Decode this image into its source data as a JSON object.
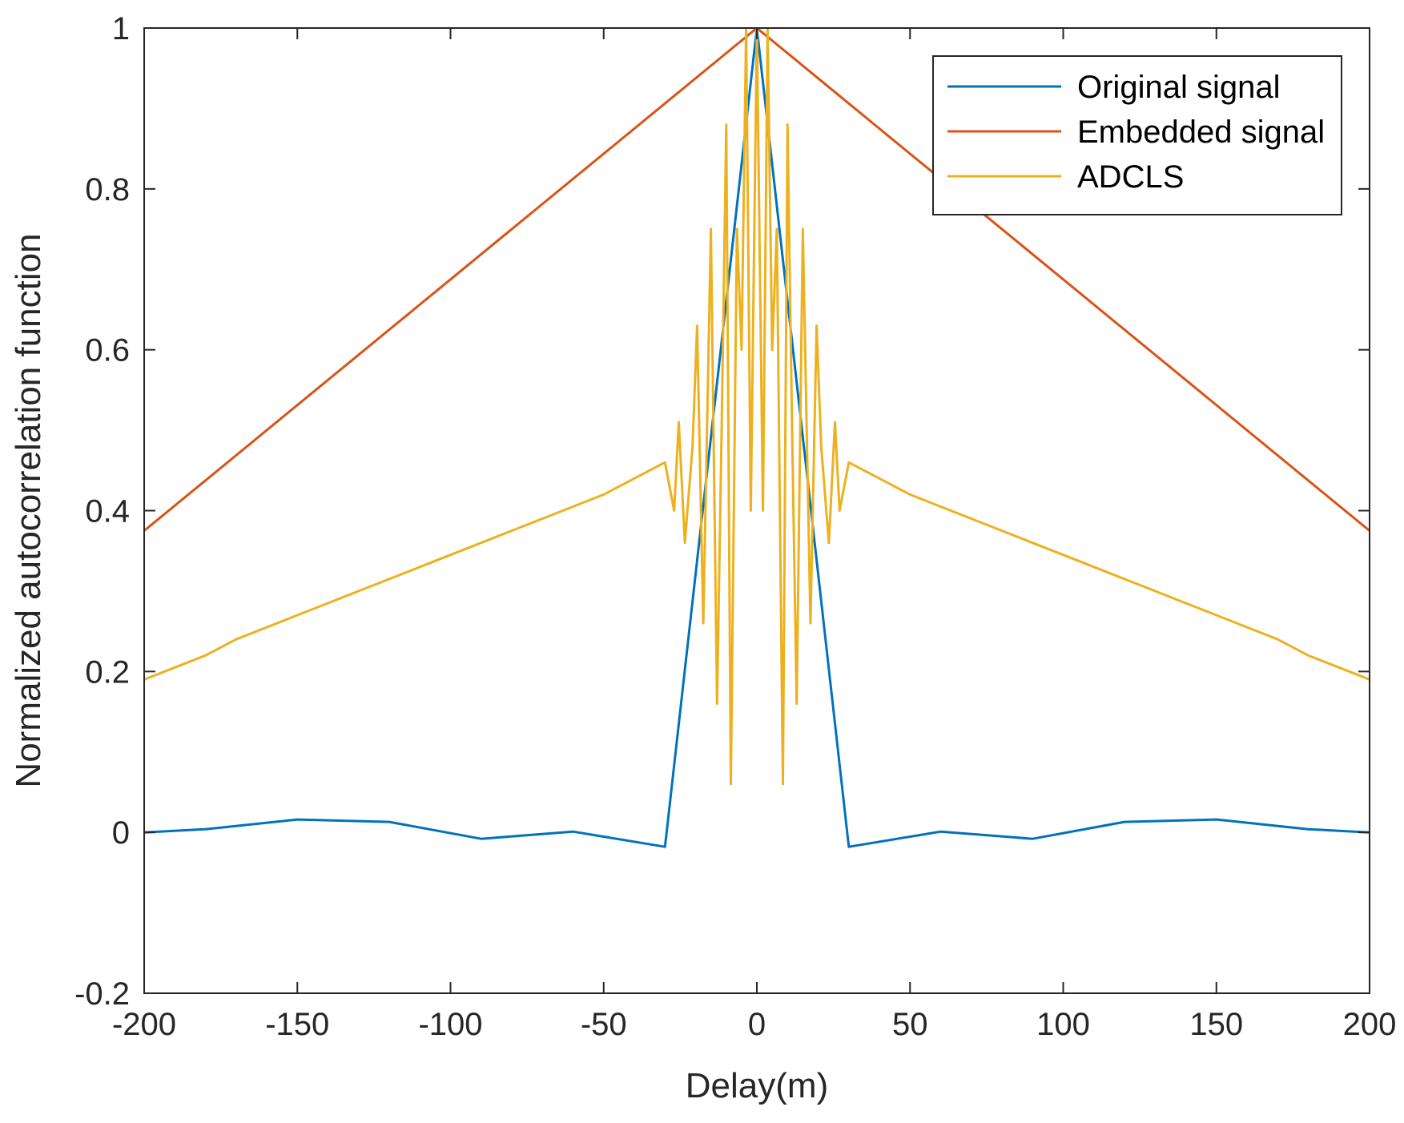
{
  "chart_data": {
    "type": "line",
    "title": "",
    "xlabel": "Delay(m)",
    "ylabel": "Normalized autocorrelation function",
    "xlim": [
      -200,
      200
    ],
    "ylim": [
      -0.2,
      1
    ],
    "xticks": [
      -200,
      -150,
      -100,
      -50,
      0,
      50,
      100,
      150,
      200
    ],
    "xtick_labels": [
      "-200",
      "-150",
      "-100",
      "-50",
      "0",
      "50",
      "100",
      "150",
      "200"
    ],
    "yticks": [
      -0.2,
      0,
      0.2,
      0.4,
      0.6,
      0.8,
      1
    ],
    "ytick_labels": [
      "-0.2",
      "0",
      "0.2",
      "0.4",
      "0.6",
      "0.8",
      "1"
    ],
    "grid": false,
    "legend_position": "top-right",
    "series": [
      {
        "name": "Original signal",
        "color": "#0072BD",
        "x": [
          -200,
          -180,
          -150,
          -120,
          -90,
          -60,
          -30,
          0,
          30,
          60,
          90,
          120,
          150,
          180,
          200
        ],
        "y": [
          0.0,
          0.004,
          0.016,
          0.013,
          -0.008,
          0.001,
          -0.018,
          1.0,
          -0.018,
          0.001,
          -0.008,
          0.013,
          0.016,
          0.004,
          0.0
        ]
      },
      {
        "name": "Embedded signal",
        "color": "#D95319",
        "x": [
          -200,
          0,
          200
        ],
        "y": [
          0.375,
          1.0,
          0.375
        ]
      },
      {
        "name": "ADCLS",
        "color": "#EDB120",
        "x": [
          -200,
          -190,
          -180,
          -170,
          -160,
          -150,
          -140,
          -130,
          -120,
          -110,
          -100,
          -90,
          -80,
          -70,
          -60,
          -50,
          -40,
          -35,
          -30,
          -27,
          -25.5,
          -23.5,
          -21,
          -19.5,
          -17.5,
          -15,
          -13,
          -11.5,
          -10,
          -8.5,
          -6.5,
          -5,
          -3.5,
          -2,
          0,
          2,
          3.5,
          5,
          6.5,
          8.5,
          10,
          11.5,
          13,
          15,
          17.5,
          19.5,
          21,
          23.5,
          25.5,
          27,
          30,
          35,
          40,
          50,
          60,
          70,
          80,
          90,
          100,
          110,
          120,
          130,
          140,
          150,
          160,
          170,
          180,
          190,
          200
        ],
        "y": [
          0.19,
          0.205,
          0.22,
          0.24,
          0.255,
          0.27,
          0.285,
          0.3,
          0.315,
          0.33,
          0.345,
          0.36,
          0.375,
          0.39,
          0.405,
          0.42,
          0.44,
          0.45,
          0.46,
          0.4,
          0.51,
          0.36,
          0.48,
          0.63,
          0.26,
          0.75,
          0.16,
          0.5,
          0.88,
          0.06,
          0.75,
          0.6,
          1.0,
          0.4,
          1.0,
          0.4,
          1.0,
          0.6,
          0.75,
          0.06,
          0.88,
          0.5,
          0.16,
          0.75,
          0.26,
          0.63,
          0.48,
          0.36,
          0.51,
          0.4,
          0.46,
          0.45,
          0.44,
          0.42,
          0.405,
          0.39,
          0.375,
          0.36,
          0.345,
          0.33,
          0.315,
          0.3,
          0.285,
          0.27,
          0.255,
          0.24,
          0.22,
          0.205,
          0.19
        ]
      }
    ]
  }
}
